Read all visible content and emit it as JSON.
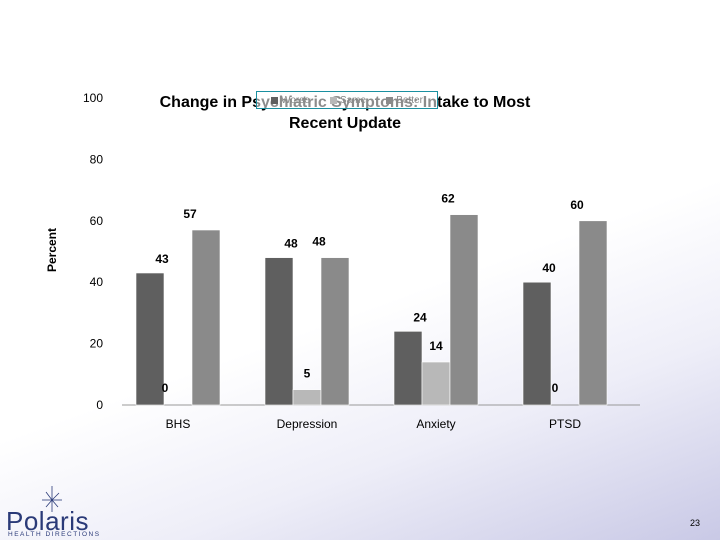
{
  "chart_data": {
    "type": "bar",
    "title": [
      "Change in Psychiatric Symptoms: Intake to Most",
      "Recent Update"
    ],
    "ylabel": "Percent",
    "xlabel": "",
    "ylim": [
      0,
      100
    ],
    "yticks": [
      0,
      20,
      40,
      60,
      80,
      100
    ],
    "categories": [
      "BHS",
      "Depression",
      "Anxiety",
      "PTSD"
    ],
    "legend_position": "top-center",
    "grid": false,
    "series": [
      {
        "name": "Worse",
        "color": "#5f5f5f",
        "values": [
          43,
          48,
          24,
          40
        ]
      },
      {
        "name": "Same",
        "color": "#b8b8b8",
        "values": [
          0,
          5,
          14,
          0
        ]
      },
      {
        "name": "Better",
        "color": "#8a8a8a",
        "values": [
          57,
          48,
          62,
          60
        ]
      }
    ]
  },
  "footer": {
    "logo_name": "Polaris",
    "logo_subtitle": "HEALTH DIRECTIONS",
    "page_number": "23"
  }
}
